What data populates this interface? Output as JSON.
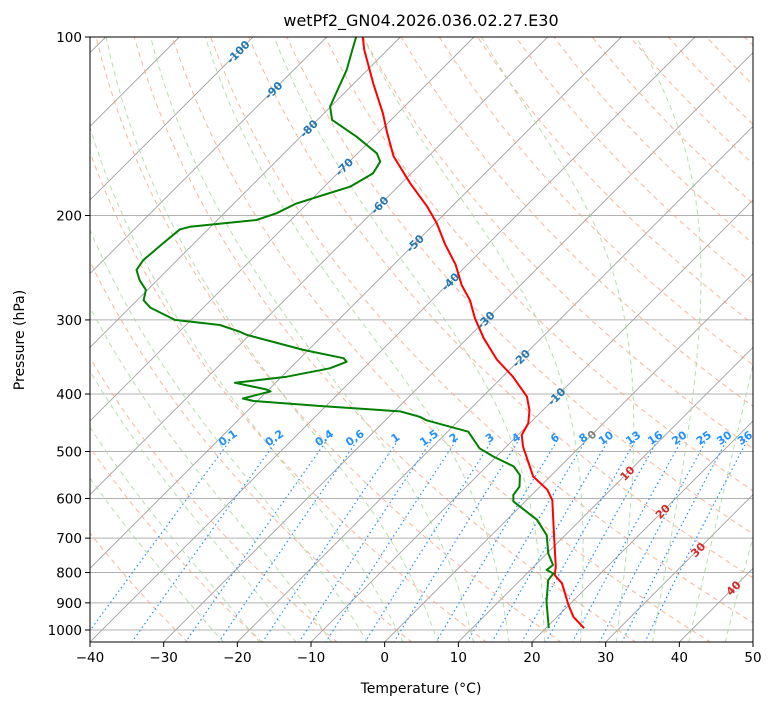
{
  "chart_data": {
    "type": "line",
    "title": "wetPf2_GN04.2026.036.02.27.E30",
    "xlabel": "Temperature (°C)",
    "ylabel": "Pressure (hPa)",
    "xlim": [
      -40,
      50
    ],
    "ylim": [
      1050,
      100
    ],
    "yscale": "log",
    "skew": "skew-T log-p",
    "grid": true,
    "x_ticks": [
      "−40",
      "−30",
      "−20",
      "−10",
      "0",
      "10",
      "20",
      "30",
      "40",
      "50"
    ],
    "x_tick_values": [
      -40,
      -30,
      -20,
      -10,
      0,
      10,
      20,
      30,
      40,
      50
    ],
    "y_ticks": [
      "100",
      "200",
      "300",
      "400",
      "500",
      "600",
      "700",
      "800",
      "900",
      "1000"
    ],
    "y_tick_values": [
      100,
      200,
      300,
      400,
      500,
      600,
      700,
      800,
      900,
      1000
    ],
    "isotherm_labels": [
      {
        "text": "-100",
        "value": -100,
        "color": "#1f77b4"
      },
      {
        "text": "-90",
        "value": -90,
        "color": "#1f77b4"
      },
      {
        "text": "-80",
        "value": -80,
        "color": "#1f77b4"
      },
      {
        "text": "-70",
        "value": -70,
        "color": "#1f77b4"
      },
      {
        "text": "-60",
        "value": -60,
        "color": "#1f77b4"
      },
      {
        "text": "-50",
        "value": -50,
        "color": "#1f77b4"
      },
      {
        "text": "-40",
        "value": -40,
        "color": "#1f77b4"
      },
      {
        "text": "-30",
        "value": -30,
        "color": "#1f77b4"
      },
      {
        "text": "-20",
        "value": -20,
        "color": "#1f77b4"
      },
      {
        "text": "-10",
        "value": -10,
        "color": "#1f77b4"
      },
      {
        "text": "0",
        "value": 0,
        "color": "#808080"
      },
      {
        "text": "10",
        "value": 10,
        "color": "#d62728"
      },
      {
        "text": "20",
        "value": 20,
        "color": "#d62728"
      },
      {
        "text": "30",
        "value": 30,
        "color": "#d62728"
      },
      {
        "text": "40",
        "value": 40,
        "color": "#d62728"
      }
    ],
    "mixing_ratio_labels": [
      "0.1",
      "0.2",
      "0.4",
      "0.6",
      "1",
      "1.5",
      "2",
      "3",
      "4",
      "6",
      "8",
      "10",
      "13",
      "16",
      "20",
      "25",
      "30",
      "36"
    ],
    "mixing_ratio_values": [
      0.1,
      0.2,
      0.4,
      0.6,
      1,
      1.5,
      2,
      3,
      4,
      6,
      8,
      10,
      13,
      16,
      20,
      25,
      30,
      36
    ],
    "series": [
      {
        "name": "Temperature",
        "color": "#ff0000",
        "pressure": [
          993,
          950,
          907,
          834,
          808,
          782,
          696,
          604,
          580,
          551,
          491,
          469,
          448,
          426,
          404,
          374,
          350,
          322,
          298,
          278,
          262,
          242,
          224,
          206,
          193,
          176.5,
          159,
          145,
          134.5,
          119.7,
          105,
          100
        ],
        "temperature": [
          25.2,
          22.2,
          19.9,
          16.1,
          14.0,
          13.0,
          8.7,
          3.5,
          1.4,
          -2.3,
          -7.7,
          -9.5,
          -10.2,
          -11.8,
          -14.0,
          -18.6,
          -23.1,
          -27.8,
          -31.7,
          -34.8,
          -38.0,
          -41.6,
          -45.7,
          -49.8,
          -53.4,
          -58.8,
          -64.7,
          -68.8,
          -72.0,
          -77.4,
          -83.2,
          -85.1
        ]
      },
      {
        "name": "Dewpoint",
        "color": "#008000",
        "pressure": [
          993,
          896,
          824,
          803,
          792,
          777,
          743,
          692,
          652,
          607,
          592,
          573,
          548,
          530,
          510,
          494,
          463,
          443,
          437,
          428,
          419,
          411,
          407,
          396,
          393,
          383,
          374,
          362,
          353,
          348,
          337,
          318,
          314,
          306,
          300,
          286,
          278,
          267,
          257,
          247,
          238,
          223,
          211,
          209,
          203.5,
          198.3,
          190.8,
          184.7,
          178.8,
          169.8,
          162.3,
          157.1,
          147.3,
          138,
          131,
          113.7,
          105,
          100
        ],
        "temperature": [
          20.4,
          16.5,
          13.8,
          13.6,
          12.2,
          12.4,
          10.2,
          7.5,
          4.1,
          -1.6,
          -2.5,
          -2.8,
          -4.3,
          -6.3,
          -10.4,
          -13.4,
          -17.2,
          -24.4,
          -25.8,
          -29.2,
          -40.8,
          -50.5,
          -52.3,
          -49.5,
          -50.3,
          -55.5,
          -49.3,
          -44.6,
          -43.2,
          -44.1,
          -50.7,
          -60.4,
          -61.8,
          -65.4,
          -72.2,
          -77.2,
          -79.1,
          -80.2,
          -82.4,
          -84.2,
          -84.6,
          -84.2,
          -83.8,
          -82.8,
          -74.7,
          -72.9,
          -71.5,
          -69.0,
          -66.5,
          -65.2,
          -65.8,
          -67.4,
          -72.4,
          -78.0,
          -80.1,
          -82.8,
          -84.8,
          -86.0
        ]
      }
    ],
    "colors": {
      "isotherm": "#a0a0a0",
      "dry_adiabat": "#f4a582",
      "moist_adiabat": "#a6d49a",
      "mixing_ratio": "#1e90ff"
    }
  }
}
